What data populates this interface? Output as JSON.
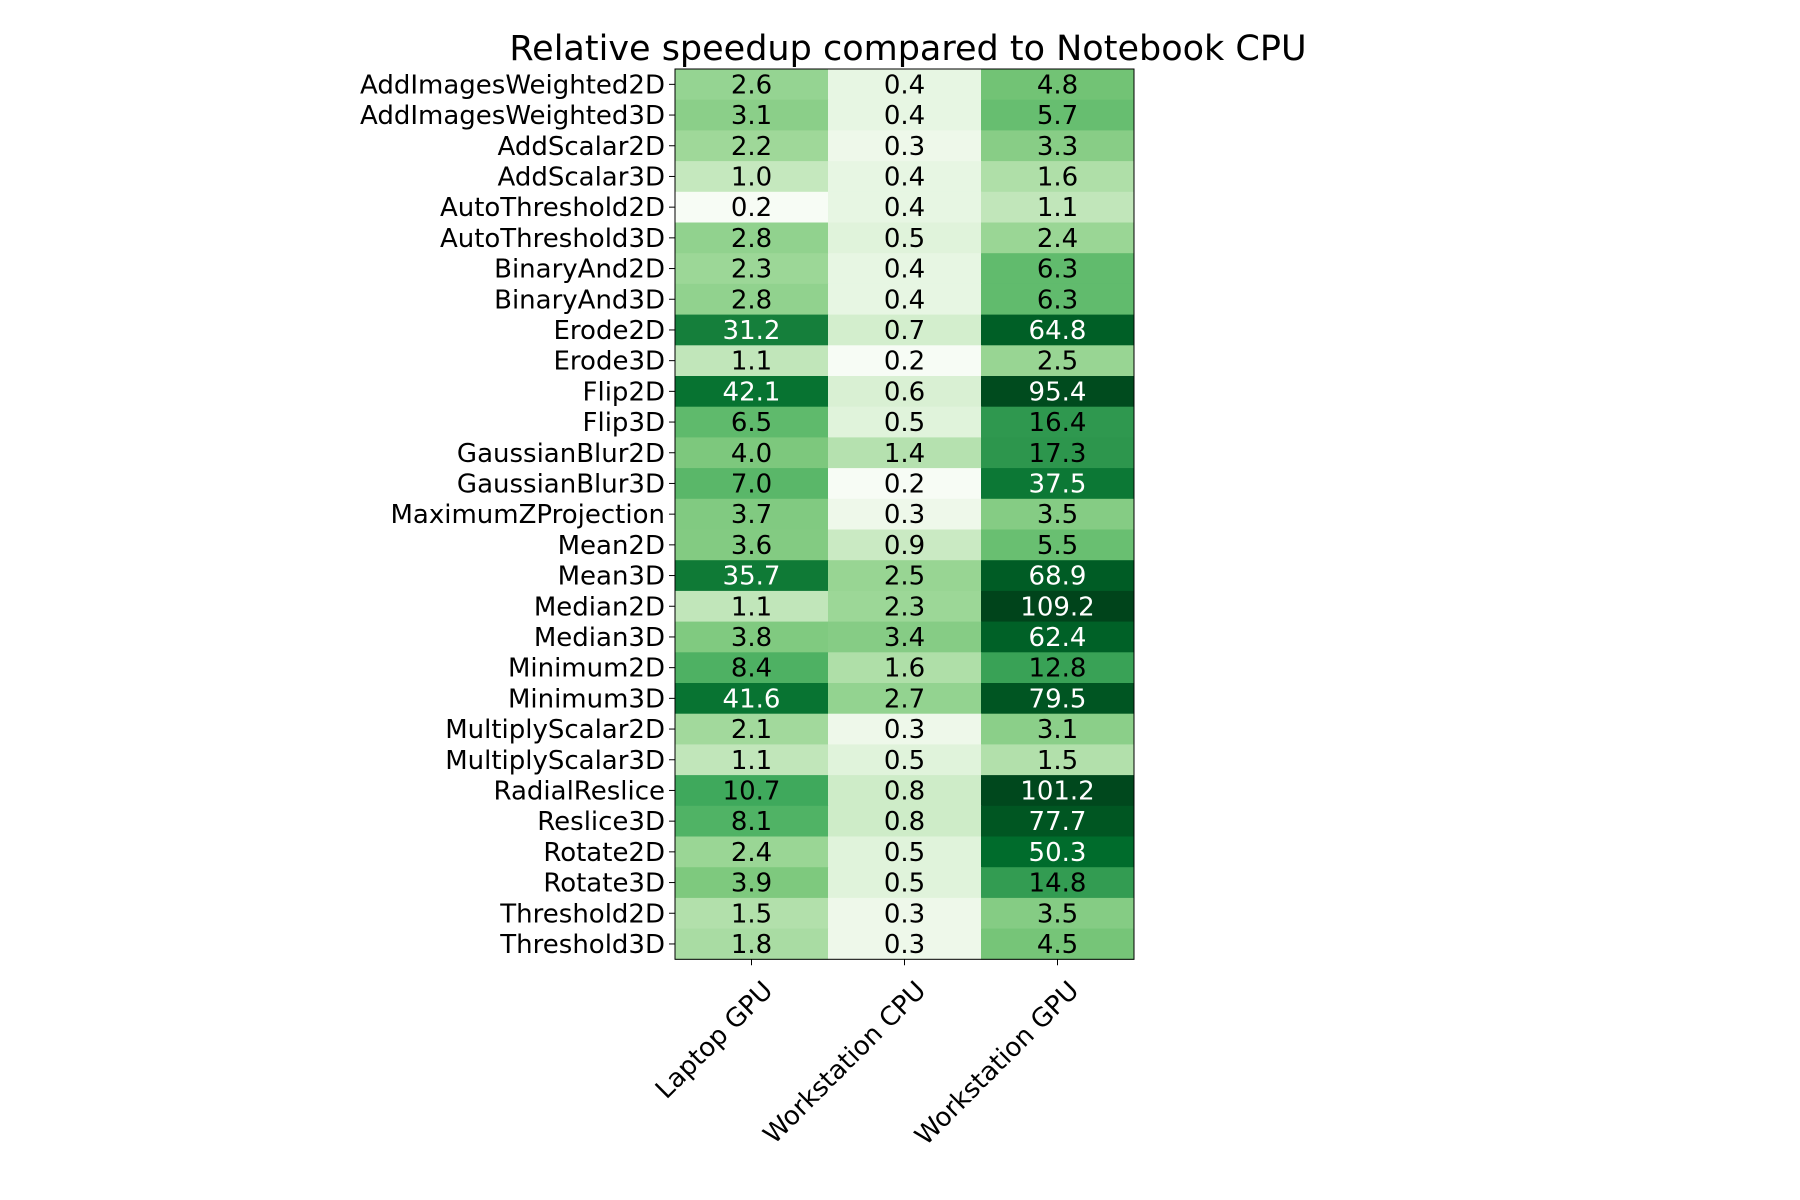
{
  "chart_data": {
    "type": "heatmap",
    "title": "Relative speedup compared to Notebook CPU",
    "columns": [
      "Laptop GPU",
      "Workstation CPU",
      "Workstation GPU"
    ],
    "rows": [
      "AddImagesWeighted2D",
      "AddImagesWeighted3D",
      "AddScalar2D",
      "AddScalar3D",
      "AutoThreshold2D",
      "AutoThreshold3D",
      "BinaryAnd2D",
      "BinaryAnd3D",
      "Erode2D",
      "Erode3D",
      "Flip2D",
      "Flip3D",
      "GaussianBlur2D",
      "GaussianBlur3D",
      "MaximumZProjection",
      "Mean2D",
      "Mean3D",
      "Median2D",
      "Median3D",
      "Minimum2D",
      "Minimum3D",
      "MultiplyScalar2D",
      "MultiplyScalar3D",
      "RadialReslice",
      "Reslice3D",
      "Rotate2D",
      "Rotate3D",
      "Threshold2D",
      "Threshold3D"
    ],
    "values": [
      [
        2.6,
        0.4,
        4.8
      ],
      [
        3.1,
        0.4,
        5.7
      ],
      [
        2.2,
        0.3,
        3.3
      ],
      [
        1.0,
        0.4,
        1.6
      ],
      [
        0.2,
        0.4,
        1.1
      ],
      [
        2.8,
        0.5,
        2.4
      ],
      [
        2.3,
        0.4,
        6.3
      ],
      [
        2.8,
        0.4,
        6.3
      ],
      [
        31.2,
        0.7,
        64.8
      ],
      [
        1.1,
        0.2,
        2.5
      ],
      [
        42.1,
        0.6,
        95.4
      ],
      [
        6.5,
        0.5,
        16.4
      ],
      [
        4.0,
        1.4,
        17.3
      ],
      [
        7.0,
        0.2,
        37.5
      ],
      [
        3.7,
        0.3,
        3.5
      ],
      [
        3.6,
        0.9,
        5.5
      ],
      [
        35.7,
        2.5,
        68.9
      ],
      [
        1.1,
        2.3,
        109.2
      ],
      [
        3.8,
        3.4,
        62.4
      ],
      [
        8.4,
        1.6,
        12.8
      ],
      [
        41.6,
        2.7,
        79.5
      ],
      [
        2.1,
        0.3,
        3.1
      ],
      [
        1.1,
        0.5,
        1.5
      ],
      [
        10.7,
        0.8,
        101.2
      ],
      [
        8.1,
        0.8,
        77.7
      ],
      [
        2.4,
        0.5,
        50.3
      ],
      [
        3.9,
        0.5,
        14.8
      ],
      [
        1.5,
        0.3,
        3.5
      ],
      [
        1.8,
        0.3,
        4.5
      ]
    ],
    "colormap": "Greens (log scale)",
    "colors": {
      "low": "#f7fcf5",
      "high": "#00441b",
      "text_dark": "#000000",
      "text_light": "#ffffff",
      "frame": "#000000"
    }
  }
}
